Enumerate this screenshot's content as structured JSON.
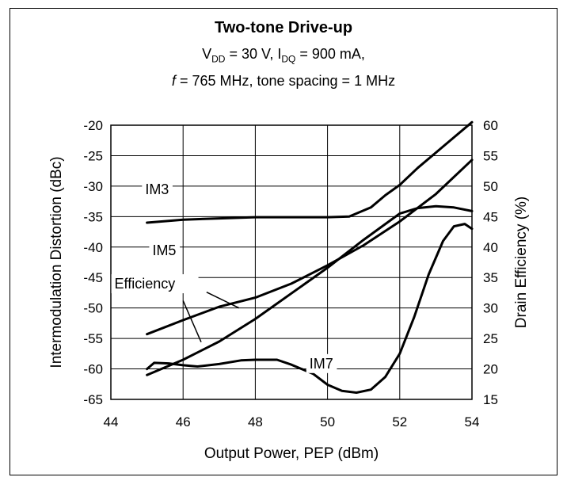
{
  "chart_data": {
    "type": "line",
    "title": "Two-tone Drive-up",
    "subtitle": {
      "vdd_v": "V",
      "vdd_sub": "DD",
      "vdd_rest": " = 30 V, I",
      "idq_sub": "DQ",
      "idq_rest": " = 900 mA,",
      "line3_f": "f",
      "line3_rest": " = 765 MHz, tone spacing = 1 MHz"
    },
    "xlabel": "Output Power, PEP (dBm)",
    "ylabel": "Intermodulation Distortion (dBc)",
    "y2label": "Drain Efficiency (%)",
    "xlim": [
      44,
      54
    ],
    "ylim": [
      -65,
      -20
    ],
    "y2lim": [
      15,
      60
    ],
    "xticks": [
      44,
      46,
      48,
      50,
      52,
      54
    ],
    "yticks": [
      -20,
      -25,
      -30,
      -35,
      -40,
      -45,
      -50,
      -55,
      -60,
      -65
    ],
    "y2ticks": [
      60,
      55,
      50,
      45,
      40,
      35,
      30,
      25,
      20,
      15
    ],
    "grid": true,
    "series": [
      {
        "name": "IM3",
        "axis": "left",
        "x": [
          45,
          46,
          47,
          48,
          49,
          50,
          50.6,
          51.2,
          51.6,
          52,
          52.5,
          53,
          53.5,
          54
        ],
        "values": [
          -36,
          -35.5,
          -35.3,
          -35.1,
          -35.1,
          -35.1,
          -35,
          -33.5,
          -31.5,
          -29.8,
          -27,
          -24.5,
          -22,
          -19.5
        ]
      },
      {
        "name": "IM5",
        "axis": "left",
        "x": [
          45,
          46,
          47,
          48,
          49,
          50,
          51,
          52,
          52.5,
          53,
          53.5,
          54
        ],
        "values": [
          -61,
          -58.5,
          -55.5,
          -51.8,
          -47.6,
          -43.4,
          -38.8,
          -34.5,
          -33.6,
          -33.3,
          -33.5,
          -34.1
        ]
      },
      {
        "name": "Efficiency",
        "axis": "right",
        "x": [
          45,
          46,
          47,
          48,
          49,
          50,
          51,
          52,
          53,
          54
        ],
        "values": [
          25.7,
          28,
          30.2,
          31.7,
          34,
          37,
          40.3,
          44.2,
          48.7,
          54.3
        ]
      },
      {
        "name": "IM7",
        "axis": "left",
        "x": [
          45,
          45.2,
          45.6,
          46,
          46.4,
          47,
          47.6,
          48,
          48.6,
          49,
          49.6,
          50,
          50.4,
          50.8,
          51.2,
          51.6,
          52,
          52.4,
          52.8,
          53.2,
          53.5,
          53.8,
          54
        ],
        "values": [
          -60,
          -59,
          -59.1,
          -59.4,
          -59.6,
          -59.2,
          -58.6,
          -58.5,
          -58.5,
          -59.3,
          -60.8,
          -62.6,
          -63.6,
          -63.9,
          -63.4,
          -61.3,
          -57.5,
          -51.5,
          -44.5,
          -39,
          -36.6,
          -36.2,
          -37
        ]
      }
    ],
    "annotations": [
      {
        "text": "IM3",
        "x": 44.95,
        "y": -31.3
      },
      {
        "text": "IM5",
        "x": 45.15,
        "y": -41.3
      },
      {
        "text": "Efficiency",
        "x": 44.1,
        "y": -46.8
      },
      {
        "text": "IM7",
        "x": 49.5,
        "y": -59.9
      }
    ],
    "colors": {
      "line": "#000000",
      "grid": "#000000",
      "background": "#ffffff"
    }
  }
}
